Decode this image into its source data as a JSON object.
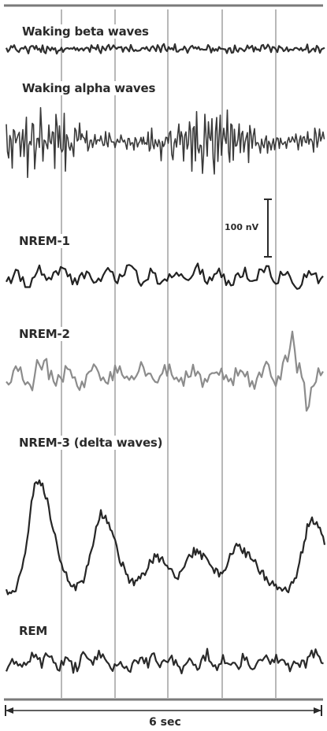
{
  "traces": [
    {
      "id": "beta",
      "label": "Waking beta waves",
      "color": "#2f2f2f",
      "amplitude": 4,
      "pattern": "fast-low"
    },
    {
      "id": "alpha",
      "label": "Waking alpha waves",
      "color": "#3a3a3a",
      "amplitude": 38,
      "pattern": "fast-high"
    },
    {
      "id": "nrem1",
      "label": "NREM-1",
      "color": "#222222",
      "amplitude": 14,
      "pattern": "medium"
    },
    {
      "id": "nrem2",
      "label": "NREM-2",
      "color": "#8c8c8c",
      "amplitude": 22,
      "pattern": "medium-spindle"
    },
    {
      "id": "nrem3",
      "label": "NREM-3 (delta waves)",
      "color": "#262626",
      "amplitude": 80,
      "pattern": "slow-high"
    },
    {
      "id": "rem",
      "label": "REM",
      "color": "#2a2a2a",
      "amplitude": 14,
      "pattern": "mixed"
    }
  ],
  "scale_bar": {
    "label": "100 nV"
  },
  "time_axis": {
    "label": "6 sec"
  },
  "colors": {
    "gridline": "#9a9a9a",
    "frame": "#7a7a7a",
    "background": "#ffffff"
  }
}
